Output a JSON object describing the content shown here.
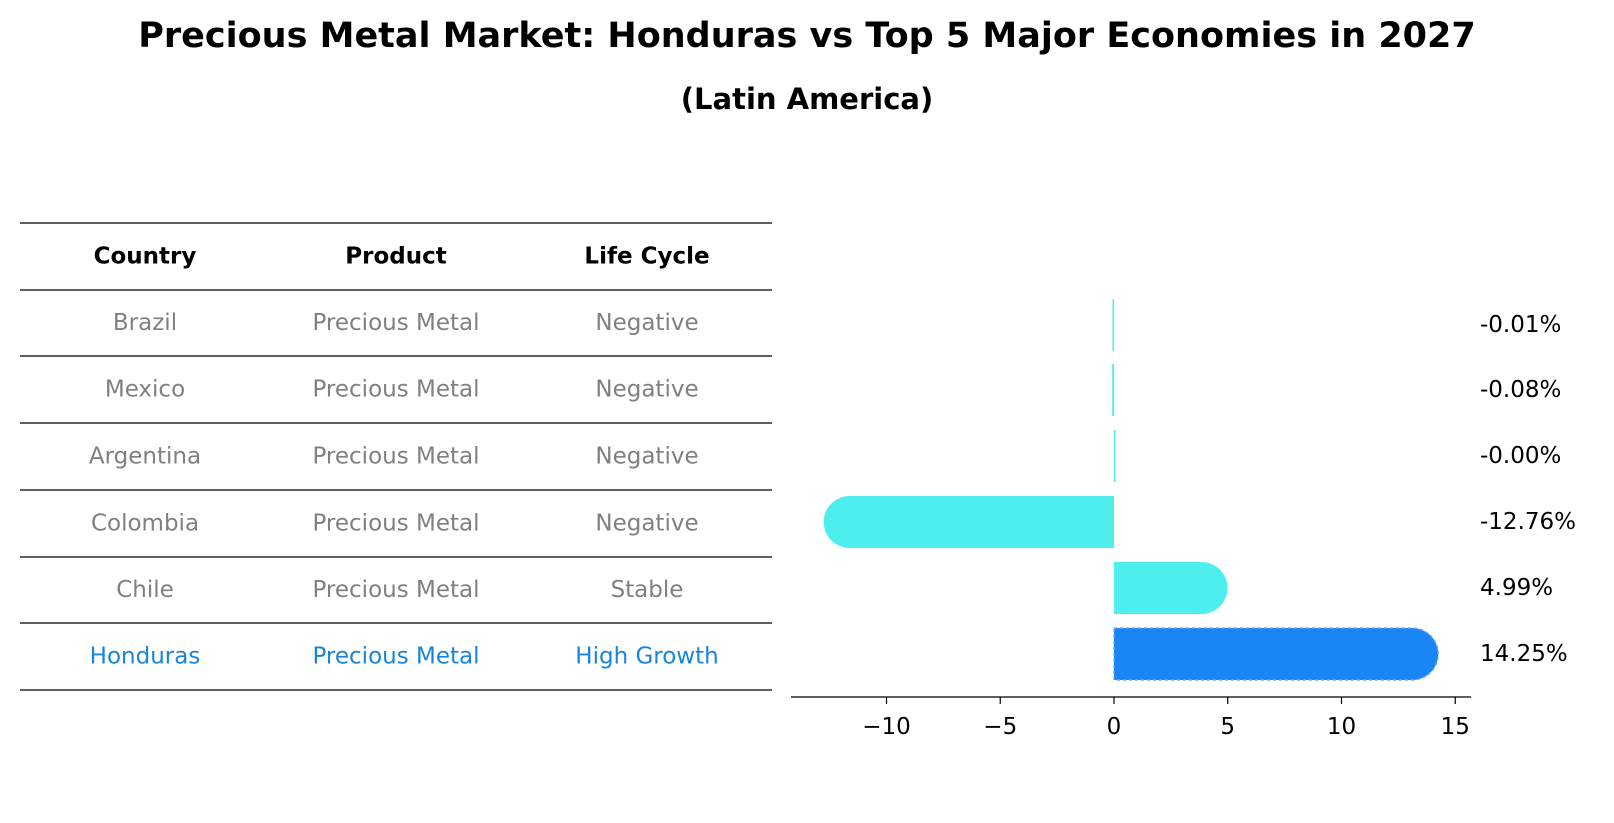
{
  "title": "Precious Metal Market: Honduras vs Top 5 Major Economies in 2027",
  "subtitle": "(Latin America)",
  "colors": {
    "highlight": "#1a85f5",
    "others": "#4eeeee",
    "muted_text": "#808080",
    "highlight_text": "#1a85d8"
  },
  "table": {
    "headers": [
      "Country",
      "Product",
      "Life Cycle"
    ],
    "rows": [
      {
        "country": "Brazil",
        "product": "Precious Metal",
        "life_cycle": "Negative"
      },
      {
        "country": "Mexico",
        "product": "Precious Metal",
        "life_cycle": "Negative"
      },
      {
        "country": "Argentina",
        "product": "Precious Metal",
        "life_cycle": "Negative"
      },
      {
        "country": "Colombia",
        "product": "Precious Metal",
        "life_cycle": "Negative"
      },
      {
        "country": "Chile",
        "product": "Precious Metal",
        "life_cycle": "Stable"
      },
      {
        "country": "Honduras",
        "product": "Precious Metal",
        "life_cycle": "High Growth"
      }
    ]
  },
  "chart_data": {
    "type": "bar",
    "orientation": "horizontal",
    "categories": [
      "Brazil",
      "Mexico",
      "Argentina",
      "Colombia",
      "Chile",
      "Honduras"
    ],
    "values": [
      -0.01,
      -0.08,
      -0.0,
      -12.76,
      4.99,
      14.25
    ],
    "value_labels": [
      "-0.01%",
      "-0.08%",
      "-0.00%",
      "-12.76%",
      "4.99%",
      "14.25%"
    ],
    "highlight": "Honduras",
    "xlim": [
      -14.2,
      15.7
    ],
    "xticks": [
      -10,
      -5,
      0,
      5,
      10,
      15
    ],
    "xtick_labels": [
      "−10",
      "−5",
      "0",
      "5",
      "10",
      "15"
    ],
    "xlabel": "",
    "ylabel": "",
    "grid": false
  }
}
